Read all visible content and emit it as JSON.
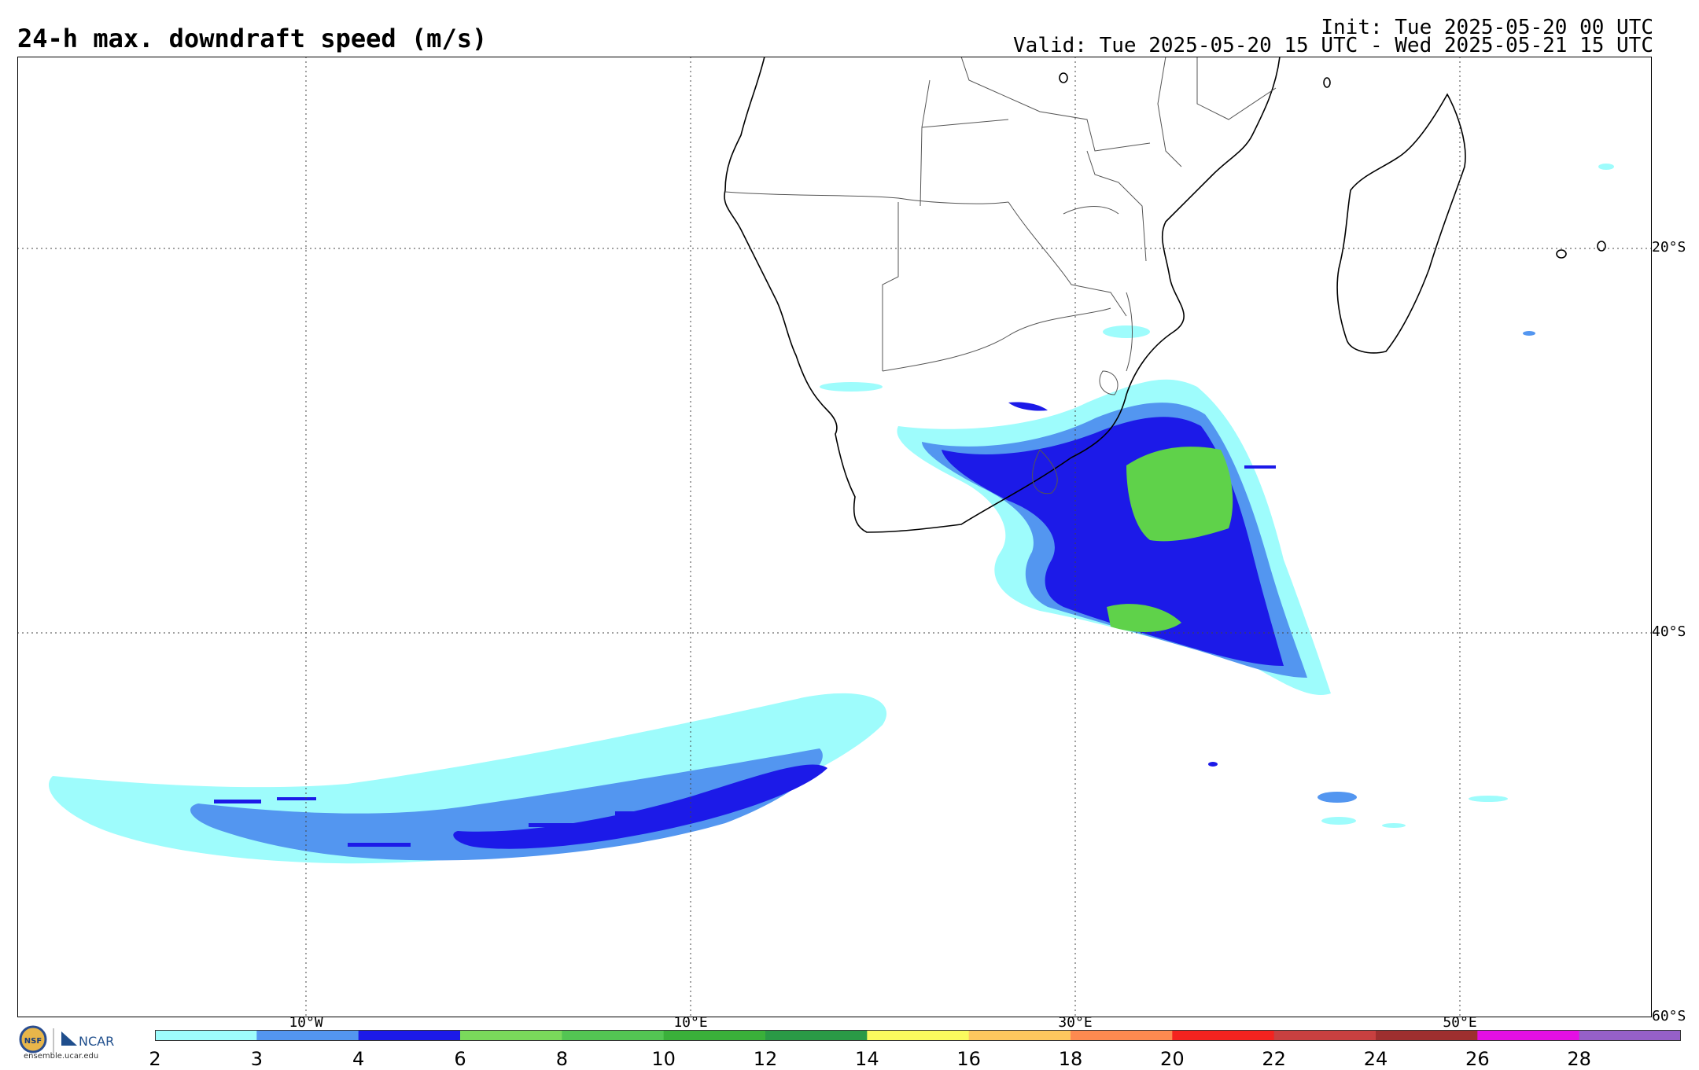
{
  "header": {
    "title": "24-h max. downdraft speed (m/s)",
    "init": "Init: Tue 2025-05-20 00 UTC",
    "valid": "Valid: Tue 2025-05-20 15 UTC - Wed 2025-05-21 15 UTC"
  },
  "map": {
    "latitude_labels": [
      "20°S",
      "40°S",
      "60°S"
    ],
    "longitude_labels": [
      "10°W",
      "10°E",
      "30°E",
      "50°E"
    ],
    "region": "Southern Africa and South Atlantic Ocean"
  },
  "colorbar": {
    "units": "m/s",
    "ticks": [
      "2",
      "3",
      "4",
      "6",
      "8",
      "10",
      "12",
      "14",
      "16",
      "18",
      "20",
      "22",
      "24",
      "26",
      "28"
    ],
    "colors": [
      "#9efcfc",
      "#5396f0",
      "#1c1ae8",
      "#7ad95b",
      "#53c553",
      "#3ab03a",
      "#2a9a46",
      "#fafa5e",
      "#fdc75e",
      "#fd8a50",
      "#f4231f",
      "#c84040",
      "#9e2f2f",
      "#e40fe4",
      "#9660c8"
    ]
  },
  "logo": {
    "org1": "NSF",
    "org2": "NCAR",
    "url": "ensemble.ucar.edu"
  }
}
